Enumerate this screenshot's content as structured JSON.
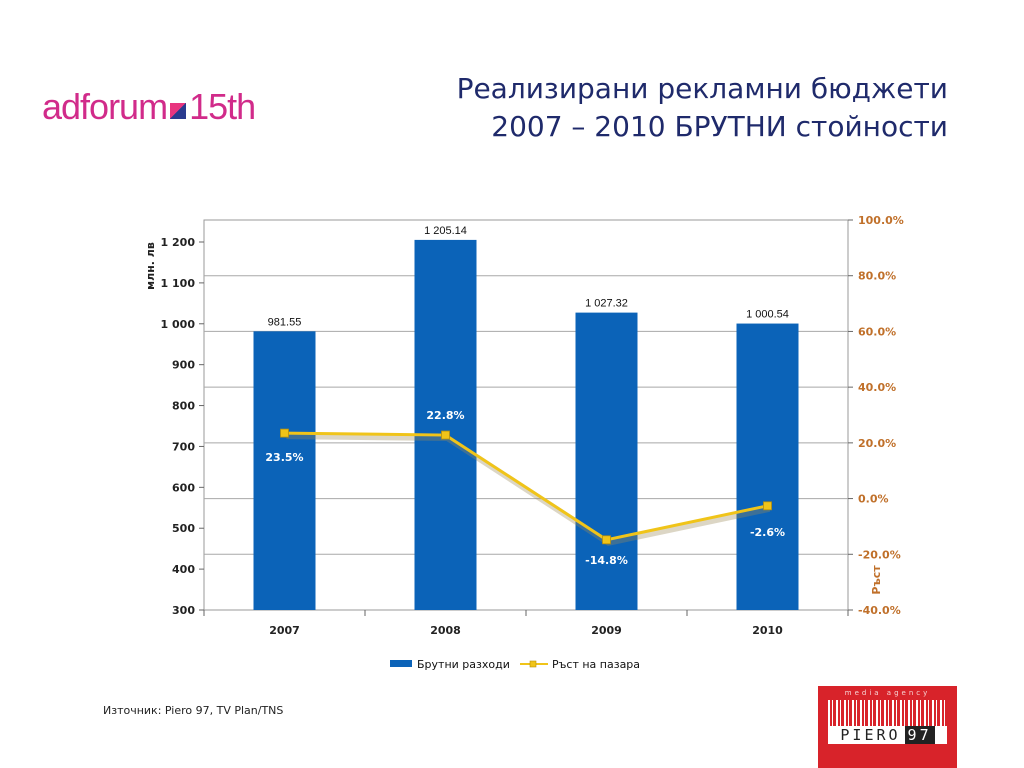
{
  "logo": {
    "text_left": "adforum",
    "text_right": "15th"
  },
  "title": {
    "line1": "Реализирани рекламни бюджети",
    "line2": "2007 – 2010  БРУТНИ стойности"
  },
  "source": "Източник: Piero 97, TV Plan/TNS",
  "brand": {
    "tagline": "media agency",
    "name_left": "PIERO",
    "name_right": "97"
  },
  "colors": {
    "bar": "#0b63b8",
    "line": "#f0c419",
    "title": "#1f2a6b",
    "axis_right": "#c0702a",
    "logo": "#d12b8a"
  },
  "chart_data": {
    "type": "bar",
    "categories": [
      "2007",
      "2008",
      "2009",
      "2010"
    ],
    "series": [
      {
        "name": "Брутни разходи",
        "type": "bar",
        "axis": "left",
        "values": [
          981.55,
          1205.14,
          1027.32,
          1000.54
        ],
        "labels": [
          "981.55",
          "1 205.14",
          "1 027.32",
          "1 000.54"
        ]
      },
      {
        "name": "Ръст на пазара",
        "type": "line",
        "axis": "right",
        "values": [
          23.5,
          22.8,
          -14.8,
          -2.6
        ],
        "labels": [
          "23.5%",
          "22.8%",
          "-14.8%",
          "-2.6%"
        ]
      }
    ],
    "ylabel": "млн. лв",
    "y2label": "Ръст",
    "ylim": [
      300,
      1250
    ],
    "y2lim": [
      -40,
      100
    ],
    "yticks": [
      "300",
      "400",
      "500",
      "600",
      "700",
      "800",
      "900",
      "1 000",
      "1 100",
      "1 200"
    ],
    "y2ticks": [
      "-40.0%",
      "-20.0%",
      "0.0%",
      "20.0%",
      "40.0%",
      "60.0%",
      "80.0%",
      "100.0%"
    ],
    "legend": "bottom",
    "grid": true
  }
}
